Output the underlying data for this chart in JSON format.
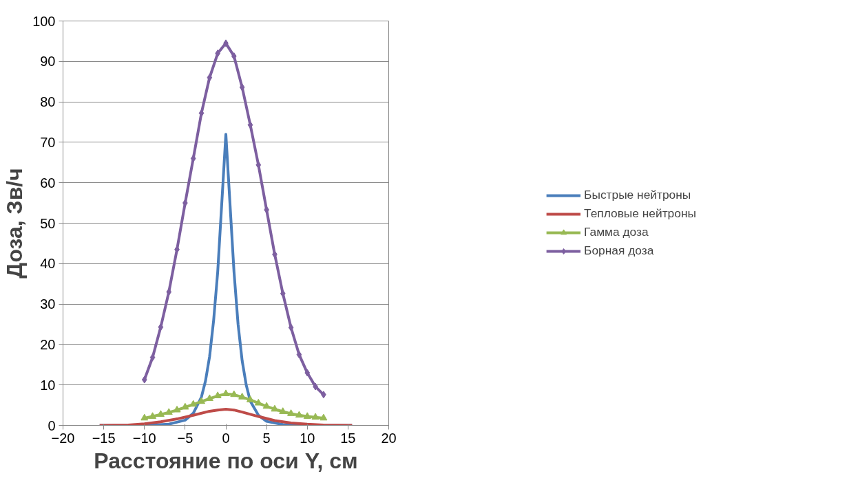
{
  "chart_data": {
    "type": "line",
    "xlabel": "Расстояние по оси Y, см",
    "ylabel": "Доза, Зв/ч",
    "xlim": [
      -20,
      20
    ],
    "ylim": [
      0,
      100
    ],
    "xticks": [
      -20,
      -15,
      -10,
      -5,
      0,
      5,
      10,
      15,
      20
    ],
    "yticks": [
      0,
      10,
      20,
      30,
      40,
      50,
      60,
      70,
      80,
      90,
      100
    ],
    "grid": "y",
    "legend": "right",
    "line_style": "solid",
    "series": [
      {
        "name": "Быстрые нейтроны",
        "color": "#4a7ebb",
        "marker": "none",
        "x": [
          -15.5,
          -10,
          -7,
          -5,
          -4,
          -3,
          -2.5,
          -2,
          -1.5,
          -1,
          -0.5,
          0,
          0.5,
          1,
          1.5,
          2,
          2.5,
          3,
          4,
          5,
          7,
          10,
          15.5
        ],
        "values": [
          0,
          0,
          0.3,
          1.3,
          3,
          7,
          11,
          17,
          26,
          38,
          55,
          72,
          55,
          38,
          25,
          16,
          10,
          6,
          2.5,
          1,
          0.2,
          0,
          0
        ]
      },
      {
        "name": "Тепловые нейтроны",
        "color": "#be4b48",
        "marker": "none",
        "x": [
          -15.5,
          -12,
          -10,
          -8,
          -6,
          -4,
          -2,
          -1,
          0,
          1,
          2,
          4,
          6,
          8,
          10,
          12,
          15.5
        ],
        "values": [
          0,
          0.1,
          0.4,
          0.9,
          1.6,
          2.5,
          3.5,
          3.8,
          4.0,
          3.8,
          3.3,
          2.2,
          1.2,
          0.6,
          0.3,
          0.1,
          0
        ]
      },
      {
        "name": "Гамма доза",
        "color": "#98b954",
        "marker": "triangle",
        "x": [
          -10,
          -9,
          -8,
          -7,
          -6,
          -5,
          -4,
          -3,
          -2,
          -1,
          0,
          1,
          2,
          3,
          4,
          5,
          6,
          7,
          8,
          9,
          10,
          11,
          12
        ],
        "values": [
          1.8,
          2.2,
          2.7,
          3.2,
          3.8,
          4.5,
          5.2,
          5.9,
          6.6,
          7.3,
          7.8,
          7.6,
          7,
          6.3,
          5.5,
          4.7,
          4,
          3.4,
          2.9,
          2.5,
          2.2,
          2,
          1.8
        ]
      },
      {
        "name": "Борная доза",
        "color": "#7d5fa0",
        "marker": "diamond",
        "x": [
          -10,
          -9,
          -8,
          -7,
          -6,
          -5,
          -4,
          -3,
          -2,
          -1,
          0,
          1,
          2,
          3,
          4,
          5,
          6,
          7,
          8,
          9,
          10,
          11,
          12
        ],
        "values": [
          11.3,
          16.8,
          24.3,
          33,
          43.5,
          55,
          66,
          77.2,
          86,
          92,
          94.5,
          91.3,
          83.6,
          74.3,
          64.4,
          53.3,
          42.3,
          32.6,
          24.2,
          17.5,
          13,
          9.6,
          7.6
        ]
      }
    ]
  }
}
